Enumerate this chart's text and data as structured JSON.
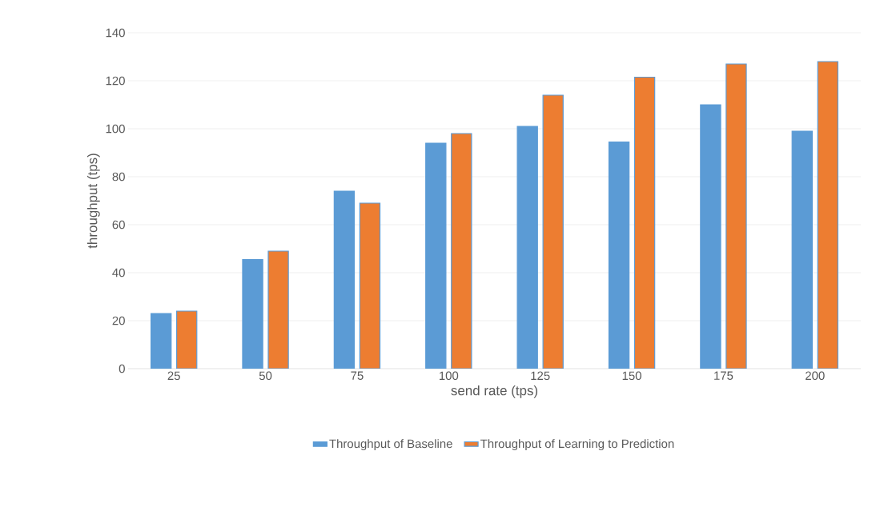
{
  "chart_data": {
    "type": "bar",
    "xlabel": "send rate (tps)",
    "ylabel": "throughput (tps)",
    "categories": [
      "25",
      "50",
      "75",
      "100",
      "125",
      "150",
      "175",
      "200"
    ],
    "series": [
      {
        "name": "Throughput of Baseline",
        "color": "#5b9bd5",
        "values": [
          23,
          45.5,
          74,
          94,
          101,
          94.5,
          110,
          99
        ]
      },
      {
        "name": "Throughput of Learning to Prediction",
        "color": "#ed7d31",
        "values": [
          24,
          49,
          69,
          98,
          114,
          121.5,
          127,
          128
        ]
      }
    ],
    "ylim": [
      0,
      140
    ],
    "yticks": [
      0,
      20,
      40,
      60,
      80,
      100,
      120,
      140
    ],
    "grid": "y",
    "legend": "bottom"
  }
}
